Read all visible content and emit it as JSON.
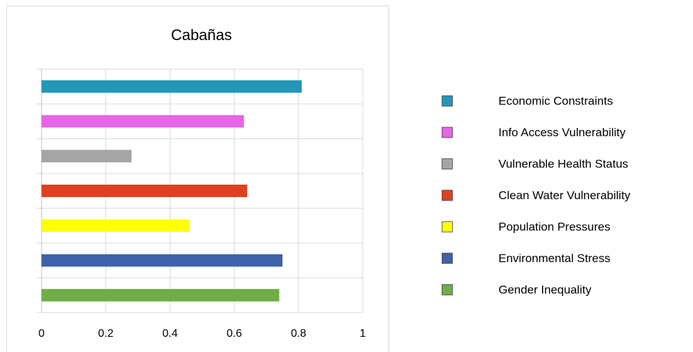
{
  "chart_data": {
    "type": "bar",
    "orientation": "horizontal",
    "title": "Cabañas",
    "series": [
      {
        "name": "Economic Constraints",
        "color": "#2596b8",
        "values": [
          0.81
        ]
      },
      {
        "name": "Info Access Vulnerability",
        "color": "#e565e5",
        "values": [
          0.63
        ]
      },
      {
        "name": "Vulnerable Health Status",
        "color": "#a5a5a5",
        "values": [
          0.28
        ]
      },
      {
        "name": "Clean Water Vulnerability",
        "color": "#e0401f",
        "values": [
          0.64
        ]
      },
      {
        "name": "Population Pressures",
        "color": "#ffff00",
        "values": [
          0.46
        ]
      },
      {
        "name": "Environmental Stress",
        "color": "#3f61a8",
        "values": [
          0.75
        ]
      },
      {
        "name": "Gender Inequality",
        "color": "#70ad47",
        "values": [
          0.74
        ]
      }
    ],
    "xlim": [
      0,
      1
    ],
    "xticks": [
      0,
      0.2,
      0.4,
      0.6,
      0.8,
      1
    ],
    "grid": true,
    "legend": "right"
  }
}
